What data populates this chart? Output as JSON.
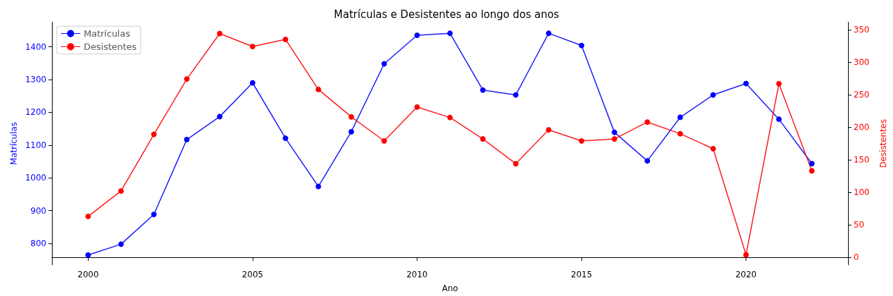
{
  "chart_data": {
    "type": "line",
    "title": "Matrículas e Desistentes ao longo dos anos",
    "xlabel": "Ano",
    "ylabel": "Matrículas",
    "y2label": "Desistentes",
    "x": [
      2000,
      2001,
      2002,
      2003,
      2004,
      2005,
      2006,
      2007,
      2008,
      2009,
      2010,
      2011,
      2012,
      2013,
      2014,
      2015,
      2016,
      2017,
      2018,
      2019,
      2020,
      2021,
      2022
    ],
    "series": [
      {
        "name": "Matrículas",
        "color": "#0000ff",
        "values": [
          765,
          798,
          889,
          1117,
          1187,
          1290,
          1121,
          974,
          1141,
          1348,
          1435,
          1441,
          1268,
          1253,
          1441,
          1404,
          1139,
          1052,
          1185,
          1253,
          1288,
          1179,
          1044
        ]
      },
      {
        "name": "Desistentes",
        "color": "#ff0000",
        "axis": "y2",
        "values": [
          63,
          102,
          189,
          274,
          344,
          324,
          335,
          258,
          216,
          179,
          231,
          215,
          182,
          144,
          196,
          179,
          182,
          208,
          190,
          167,
          4,
          267,
          133
        ]
      }
    ],
    "xlim": [
      1998.9,
      2023.1
    ],
    "xticks": [
      2000,
      2005,
      2010,
      2015,
      2020
    ],
    "ylim": [
      735,
      1475
    ],
    "yticks": [
      800,
      900,
      1000,
      1100,
      1200,
      1300,
      1400
    ],
    "y2lim": [
      -11.5,
      361.5
    ],
    "y2ticks": [
      0,
      50,
      100,
      150,
      200,
      250,
      300,
      350
    ],
    "grid": false,
    "legend": "top left",
    "marker": "circle",
    "line_style": "solid"
  }
}
